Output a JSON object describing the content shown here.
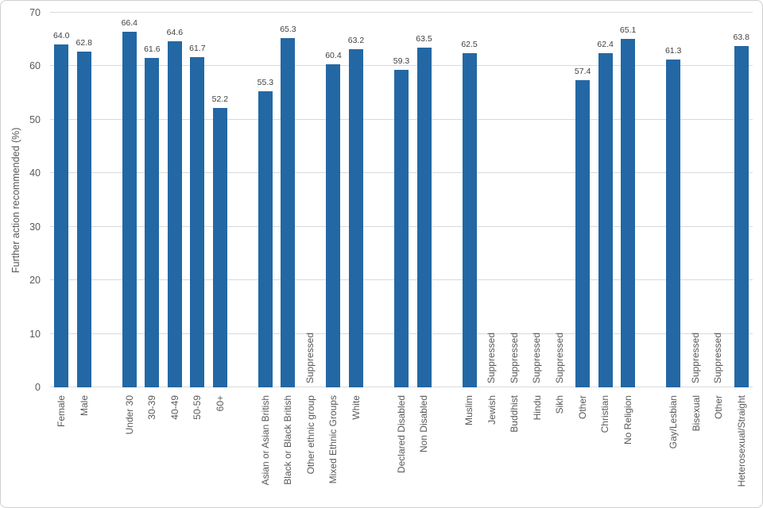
{
  "chart_data": {
    "type": "bar",
    "title": "",
    "ylabel": "Further action recommended (%)",
    "xlabel": "",
    "ylim": [
      0,
      70
    ],
    "yticks": [
      0,
      10,
      20,
      30,
      40,
      50,
      60,
      70
    ],
    "grid": true,
    "legend": false,
    "suppressed_text": "Suppressed",
    "colors": {
      "bar": "#2368A4",
      "gridline": "#d9d9d9",
      "axis_text": "#595959",
      "value_label_text": "#404040"
    },
    "slots": [
      {
        "label": "Female",
        "value": 64.0
      },
      {
        "label": "Male",
        "value": 62.8
      },
      {
        "spacer": true
      },
      {
        "label": "Under 30",
        "value": 66.4
      },
      {
        "label": "30-39",
        "value": 61.6
      },
      {
        "label": "40-49",
        "value": 64.6
      },
      {
        "label": "50-59",
        "value": 61.7
      },
      {
        "label": "60+",
        "value": 52.2
      },
      {
        "spacer": true
      },
      {
        "label": "Asian or Asian British",
        "value": 55.3
      },
      {
        "label": "Black or Black British",
        "value": 65.3
      },
      {
        "label": "Other ethnic group",
        "suppressed": true
      },
      {
        "label": "Mixed Ethnic Groups",
        "value": 60.4
      },
      {
        "label": "White",
        "value": 63.2
      },
      {
        "spacer": true
      },
      {
        "label": "Declared Disabled",
        "value": 59.3
      },
      {
        "label": "Non Disabled",
        "value": 63.5
      },
      {
        "spacer": true
      },
      {
        "label": "Muslim",
        "value": 62.5
      },
      {
        "label": "Jewish",
        "suppressed": true
      },
      {
        "label": "Buddhist",
        "suppressed": true
      },
      {
        "label": "Hindu",
        "suppressed": true
      },
      {
        "label": "Sikh",
        "suppressed": true
      },
      {
        "label": "Other",
        "value": 57.4
      },
      {
        "label": "Christian",
        "value": 62.4
      },
      {
        "label": "No Religion",
        "value": 65.1
      },
      {
        "spacer": true
      },
      {
        "label": "Gay/Lesbian",
        "value": 61.3
      },
      {
        "label": "Bisexual",
        "suppressed": true
      },
      {
        "label": "Other",
        "suppressed": true
      },
      {
        "label": "Heterosexual/Straight",
        "value": 63.8
      }
    ]
  }
}
